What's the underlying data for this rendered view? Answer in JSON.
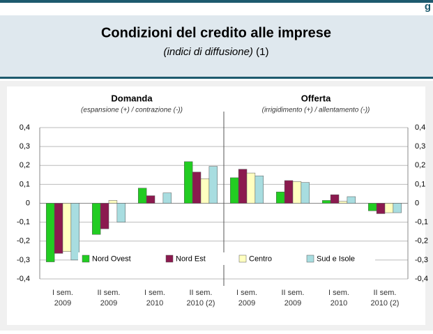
{
  "header": {
    "corner": "g",
    "title": "Condizioni del credito alle imprese",
    "subtitle": "(indici di diffusione)",
    "note": "(1)"
  },
  "chart_data": {
    "type": "bar",
    "panels": [
      {
        "title": "Domanda",
        "subtitle": "(espansione (+) / contrazione (-))"
      },
      {
        "title": "Offerta",
        "subtitle": "(irrigidimento (+) / allentamento (-))"
      }
    ],
    "categories": [
      [
        "I sem.",
        "2009"
      ],
      [
        "II sem.",
        "2009"
      ],
      [
        "I sem.",
        "2010"
      ],
      [
        "II sem.",
        "2010 (2)"
      ],
      [
        "I sem.",
        "2009"
      ],
      [
        "II sem.",
        "2009"
      ],
      [
        "I sem.",
        "2010"
      ],
      [
        "II sem.",
        "2010 (2)"
      ]
    ],
    "series": [
      {
        "name": "Nord Ovest",
        "color": "#22cc22",
        "values": [
          -0.31,
          -0.165,
          0.08,
          0.22,
          0.135,
          0.06,
          0.015,
          -0.04
        ]
      },
      {
        "name": "Nord Est",
        "color": "#8b1a4f",
        "values": [
          -0.265,
          -0.135,
          0.04,
          0.165,
          0.18,
          0.12,
          0.045,
          -0.055
        ]
      },
      {
        "name": "Centro",
        "color": "#ffffc0",
        "values": [
          -0.255,
          0.015,
          0,
          0.13,
          0.16,
          0.115,
          0.01,
          -0.05
        ]
      },
      {
        "name": "Sud e Isole",
        "color": "#a8dde0",
        "values": [
          -0.3,
          -0.1,
          0.055,
          0.195,
          0.145,
          0.11,
          0.035,
          -0.05
        ]
      }
    ],
    "ylim": [
      -0.4,
      0.4
    ],
    "yticks": [
      {
        "value": 0.4,
        "label": "0,4"
      },
      {
        "value": 0.3,
        "label": "0,3"
      },
      {
        "value": 0.2,
        "label": "0,2"
      },
      {
        "value": 0.1,
        "label": "0,1"
      },
      0,
      {
        "value": -0.1,
        "label": "-0,1"
      },
      {
        "value": -0.2,
        "label": "-0,2"
      },
      {
        "value": -0.3,
        "label": "-0,3"
      },
      {
        "value": -0.4,
        "label": "-0,4"
      }
    ],
    "grid": true
  }
}
